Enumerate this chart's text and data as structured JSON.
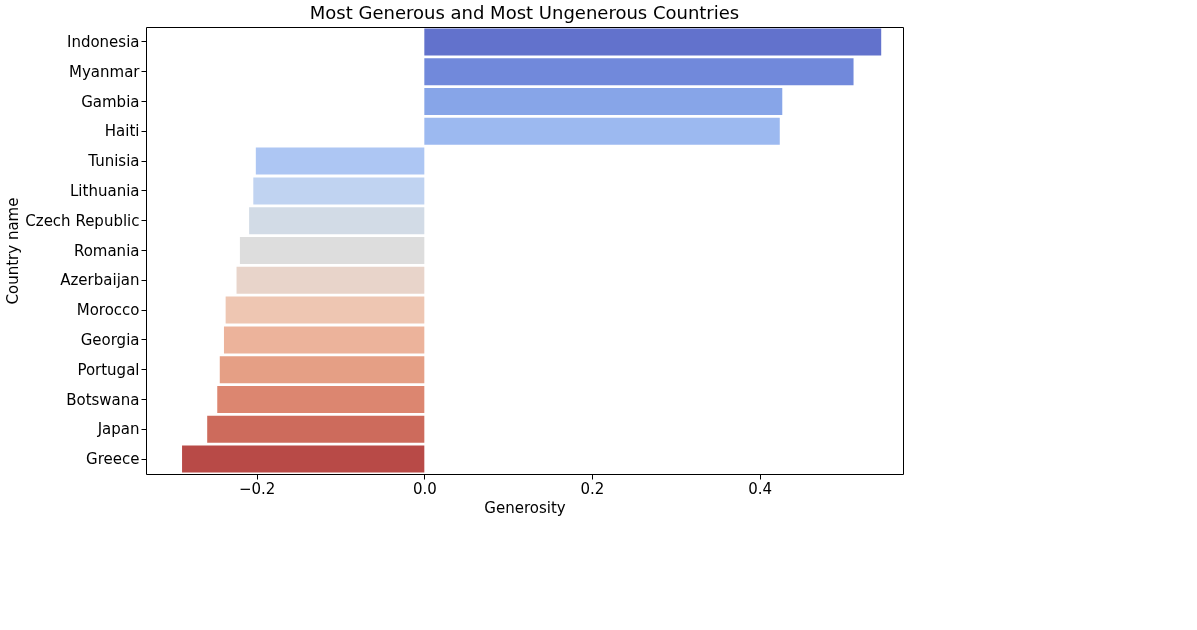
{
  "chart_data": {
    "type": "bar",
    "orientation": "horizontal",
    "title": "Most Generous and Most Ungenerous Countries",
    "xlabel": "Generosity",
    "ylabel": "Country name",
    "categories": [
      "Indonesia",
      "Myanmar",
      "Gambia",
      "Haiti",
      "Tunisia",
      "Lithuania",
      "Czech Republic",
      "Romania",
      "Azerbaijan",
      "Morocco",
      "Georgia",
      "Portugal",
      "Botswana",
      "Japan",
      "Greece"
    ],
    "values": [
      0.545,
      0.512,
      0.427,
      0.424,
      -0.201,
      -0.204,
      -0.209,
      -0.22,
      -0.224,
      -0.237,
      -0.239,
      -0.244,
      -0.247,
      -0.259,
      -0.289
    ],
    "colors": [
      "#6272cc",
      "#7189db",
      "#87a5e8",
      "#9cb9f0",
      "#adc6f3",
      "#c0d3f1",
      "#d2dbe6",
      "#dddddd",
      "#e8d4ca",
      "#eec6b2",
      "#ecb39b",
      "#e59f85",
      "#dc8670",
      "#cd6b5c",
      "#b84a47"
    ],
    "xlim": [
      -0.332,
      0.571
    ],
    "xticks": [
      {
        "value": -0.2,
        "label": "−0.2"
      },
      {
        "value": 0.0,
        "label": "0.0"
      },
      {
        "value": 0.2,
        "label": "0.2"
      },
      {
        "value": 0.4,
        "label": "0.4"
      }
    ],
    "grid": false
  }
}
